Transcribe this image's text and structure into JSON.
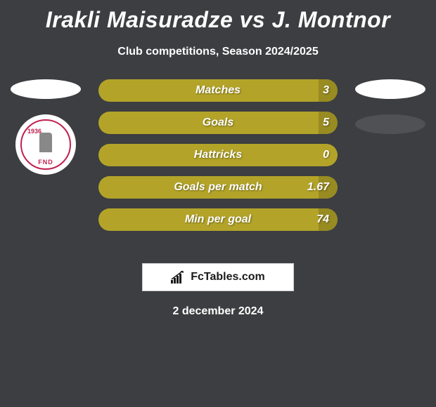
{
  "title": "Irakli Maisuradze vs J. Montnor",
  "subtitle": "Club competitions, Season 2024/2025",
  "date": "2 december 2024",
  "watermark_text": "FcTables.com",
  "colors": {
    "background": "#3d3e41",
    "bar_color": "#b3a429",
    "text_white": "#ffffff",
    "oval_gray": "#505154",
    "badge_accent": "#c02050"
  },
  "left_player": {
    "club_badge_year": "1936",
    "club_badge_text": "FND"
  },
  "stats": [
    {
      "label": "Matches",
      "right_value": "3",
      "right_fill_pct": 8
    },
    {
      "label": "Goals",
      "right_value": "5",
      "right_fill_pct": 8
    },
    {
      "label": "Hattricks",
      "right_value": "0",
      "right_fill_pct": 0
    },
    {
      "label": "Goals per match",
      "right_value": "1.67",
      "right_fill_pct": 8
    },
    {
      "label": "Min per goal",
      "right_value": "74",
      "right_fill_pct": 8
    }
  ]
}
